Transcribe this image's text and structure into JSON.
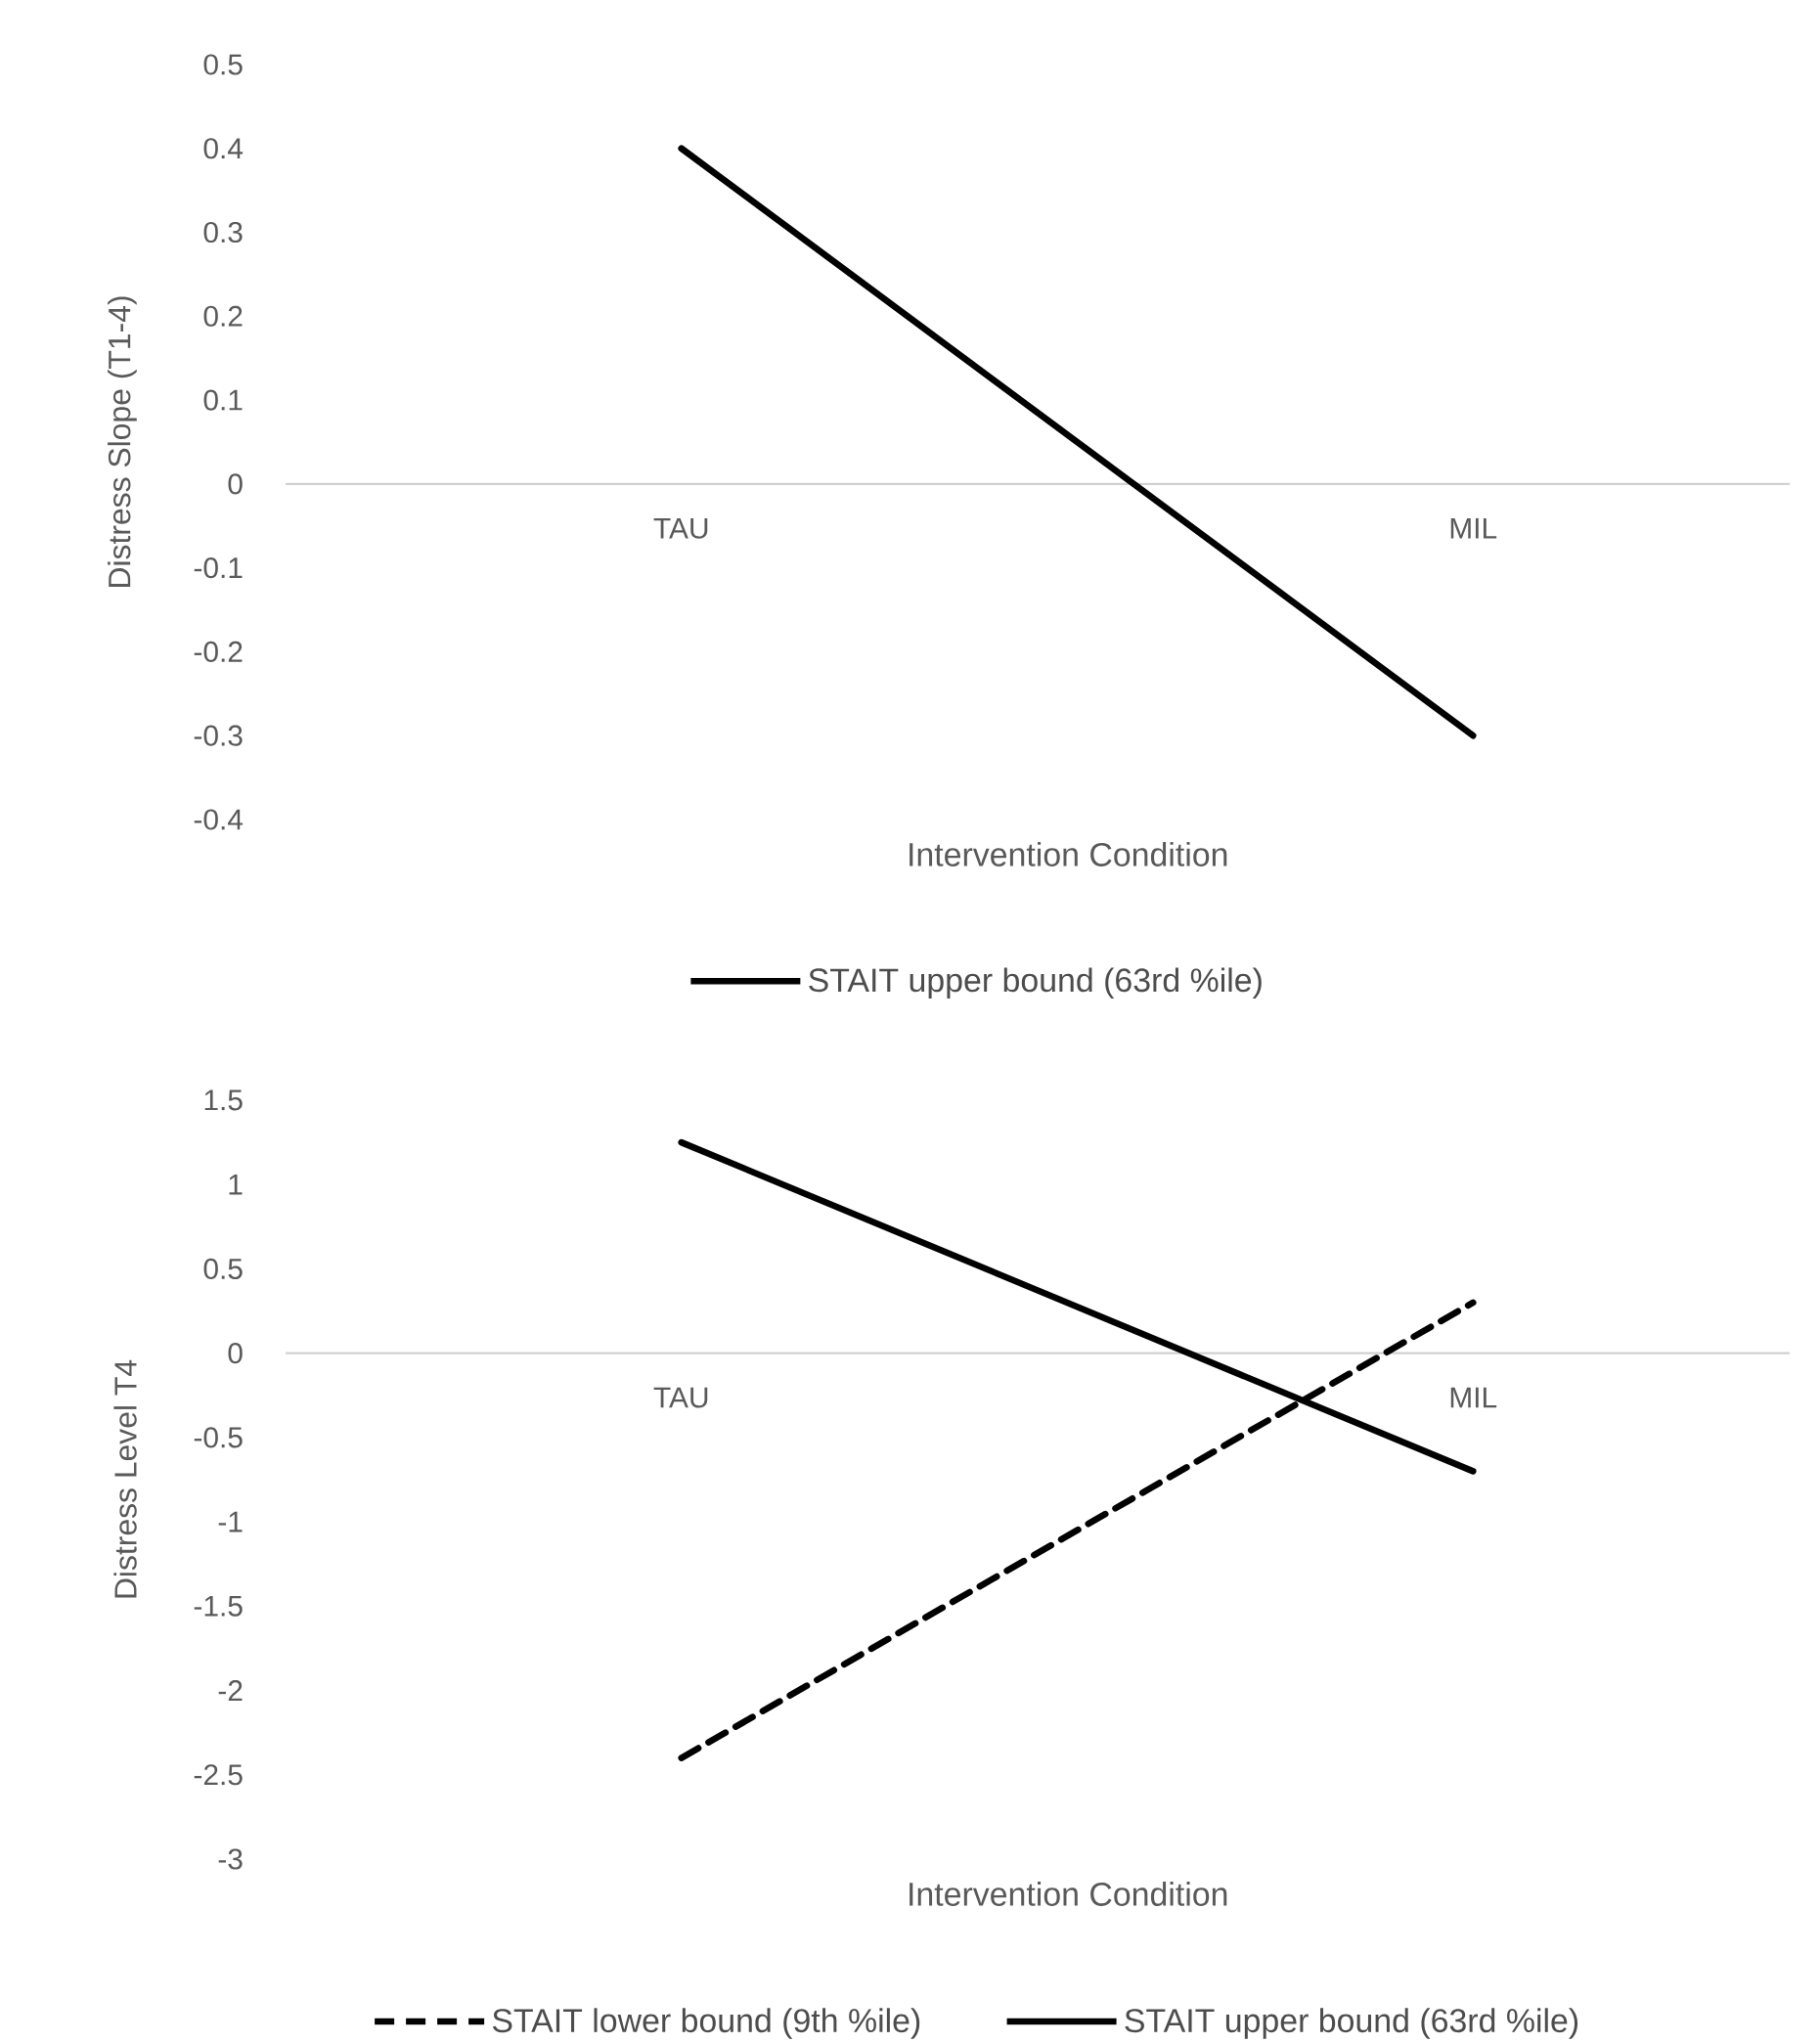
{
  "chart_data": [
    {
      "type": "line",
      "categories": [
        "TAU",
        "MIL"
      ],
      "xlabel": "Intervention Condition",
      "ylabel": "Distress Slope (T1-4)",
      "ylim": [
        -0.4,
        0.5
      ],
      "yticks": [
        -0.4,
        -0.3,
        -0.2,
        -0.1,
        0,
        0.1,
        0.2,
        0.3,
        0.4,
        0.5
      ],
      "legend": "bottom",
      "series": [
        {
          "name": "STAIT upper bound (63rd %ile)",
          "color": "#000000",
          "line_style": "solid",
          "values": [
            0.4,
            -0.3
          ]
        }
      ]
    },
    {
      "type": "line",
      "categories": [
        "TAU",
        "MIL"
      ],
      "xlabel": "Intervention Condition",
      "ylabel": "Distress Level T4",
      "ylim": [
        -3,
        1.5
      ],
      "yticks": [
        -3,
        -2.5,
        -2,
        -1.5,
        -1,
        -0.5,
        0,
        0.5,
        1,
        1.5
      ],
      "legend": "bottom",
      "series": [
        {
          "name": "STAIT lower bound (9th %ile)",
          "color": "#000000",
          "line_style": "dashed",
          "values": [
            -2.4,
            0.3
          ]
        },
        {
          "name": "STAIT upper bound (63rd %ile)",
          "color": "#000000",
          "line_style": "solid",
          "values": [
            1.25,
            -0.7
          ]
        }
      ]
    }
  ]
}
